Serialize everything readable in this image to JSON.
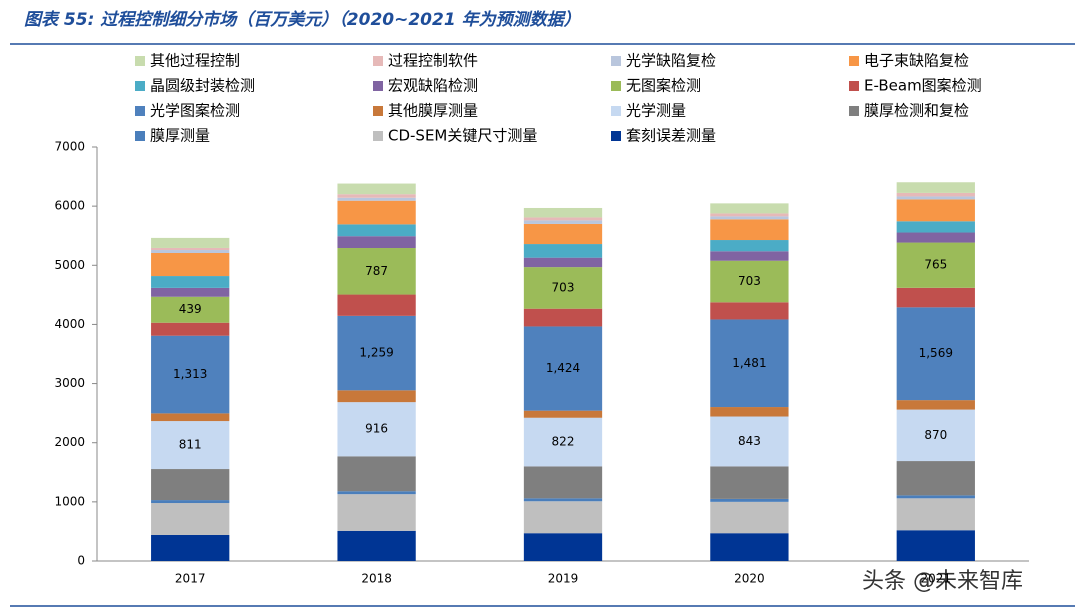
{
  "chart_data": {
    "type": "bar",
    "stacked": true,
    "title": "图表 55: 过程控制细分市场（百万美元）（2020~2021 年为预测数据）",
    "watermark": "头条 @未来智库",
    "categories": [
      "2017",
      "2018",
      "2019",
      "2020",
      "2021"
    ],
    "ylim": [
      0,
      7000
    ],
    "yticks": [
      0,
      1000,
      2000,
      3000,
      4000,
      5000,
      6000,
      7000
    ],
    "grid": false,
    "series": [
      {
        "name": "其他过程控制",
        "color": "#c8dcae",
        "values": [
          170,
          180,
          160,
          170,
          180
        ]
      },
      {
        "name": "过程控制软件",
        "color": "#e6b9b8",
        "values": [
          35,
          60,
          50,
          50,
          60
        ]
      },
      {
        "name": "光学缺陷复检",
        "color": "#b9c6dd",
        "values": [
          50,
          50,
          60,
          50,
          50
        ]
      },
      {
        "name": "电子束缺陷复检",
        "color": "#f79646",
        "values": [
          390,
          400,
          340,
          350,
          370
        ]
      },
      {
        "name": "晶圆级封装检测",
        "color": "#4bacc6",
        "values": [
          200,
          200,
          230,
          190,
          190
        ]
      },
      {
        "name": "宏观缺陷检测",
        "color": "#8064a2",
        "values": [
          150,
          200,
          160,
          160,
          170
        ]
      },
      {
        "name": "无图案检测",
        "color": "#9bbb59",
        "values": [
          439,
          787,
          703,
          703,
          765
        ],
        "show_labels": true
      },
      {
        "name": "E-Beam图案检测",
        "color": "#c0504d",
        "values": [
          220,
          360,
          300,
          290,
          330
        ]
      },
      {
        "name": "光学图案检测",
        "color": "#4f81bd",
        "values": [
          1313,
          1259,
          1424,
          1481,
          1569
        ],
        "value_labels": [
          "1,313",
          "1,259",
          "1,424",
          "1,481",
          "1,569"
        ],
        "show_labels": true
      },
      {
        "name": "其他膜厚测量",
        "color": "#c8783a",
        "values": [
          130,
          200,
          120,
          160,
          160
        ]
      },
      {
        "name": "光学测量",
        "color": "#c6d9f1",
        "values": [
          811,
          916,
          822,
          843,
          870
        ],
        "show_labels": true
      },
      {
        "name": "膜厚检测和复检",
        "color": "#7f7f7f",
        "values": [
          525,
          590,
          540,
          550,
          580
        ]
      },
      {
        "name": "膜厚测量",
        "color": "#4a7ebb",
        "values": [
          50,
          50,
          50,
          50,
          50
        ]
      },
      {
        "name": "CD-SEM关键尺寸测量",
        "color": "#bfbfbf",
        "values": [
          540,
          620,
          540,
          530,
          540
        ]
      },
      {
        "name": "套刻误差测量",
        "color": "#003594",
        "values": [
          440,
          510,
          470,
          470,
          520
        ]
      }
    ]
  }
}
